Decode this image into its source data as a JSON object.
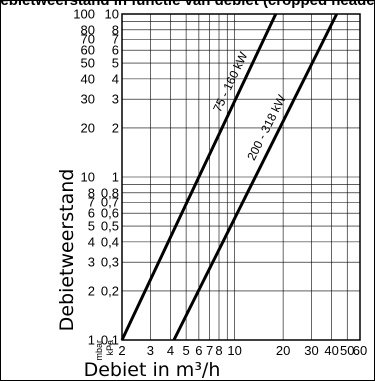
{
  "chart_data": {
    "type": "line",
    "title": "Debietweerstand in functie van debiet (cropped header)",
    "xlabel": "Debiet in m³/h",
    "ylabel": "Debietweerstand",
    "x_scale": "log",
    "y_scale": "log",
    "xlim": [
      2,
      60
    ],
    "ylim_mbar": [
      1,
      100
    ],
    "ylim_kpa": [
      0.1,
      10
    ],
    "y_unit_left": "mbar",
    "y_unit_right": "kPa",
    "x_ticks": [
      "2",
      "3",
      "4",
      "5",
      "6",
      "7",
      "8",
      "10",
      "20",
      "30",
      "40",
      "50",
      "60"
    ],
    "x_tick_values": [
      2,
      3,
      4,
      5,
      6,
      7,
      8,
      10,
      20,
      30,
      40,
      50,
      60
    ],
    "y_ticks_mbar": [
      "1",
      "2",
      "3",
      "4",
      "5",
      "6",
      "7",
      "8",
      "10",
      "20",
      "30",
      "40",
      "50",
      "60",
      "70",
      "80",
      "100"
    ],
    "y_ticks_kpa": [
      "0,1",
      "0,2",
      "0,3",
      "0,4",
      "0,5",
      "0,6",
      "0,7",
      "0,8",
      "1",
      "2",
      "3",
      "4",
      "5",
      "6",
      "7",
      "8",
      "10"
    ],
    "y_tick_values": [
      1,
      2,
      3,
      4,
      5,
      6,
      7,
      8,
      10,
      20,
      30,
      40,
      50,
      60,
      70,
      80,
      100
    ],
    "grid": true,
    "legend": "none (series labeled inline)",
    "series": [
      {
        "name": "75 - 160 kW",
        "x": [
          2.0,
          18.0
        ],
        "y": [
          1,
          100
        ]
      },
      {
        "name": "200 - 318 kW",
        "x": [
          4.2,
          43.0
        ],
        "y": [
          1,
          100
        ]
      }
    ]
  }
}
